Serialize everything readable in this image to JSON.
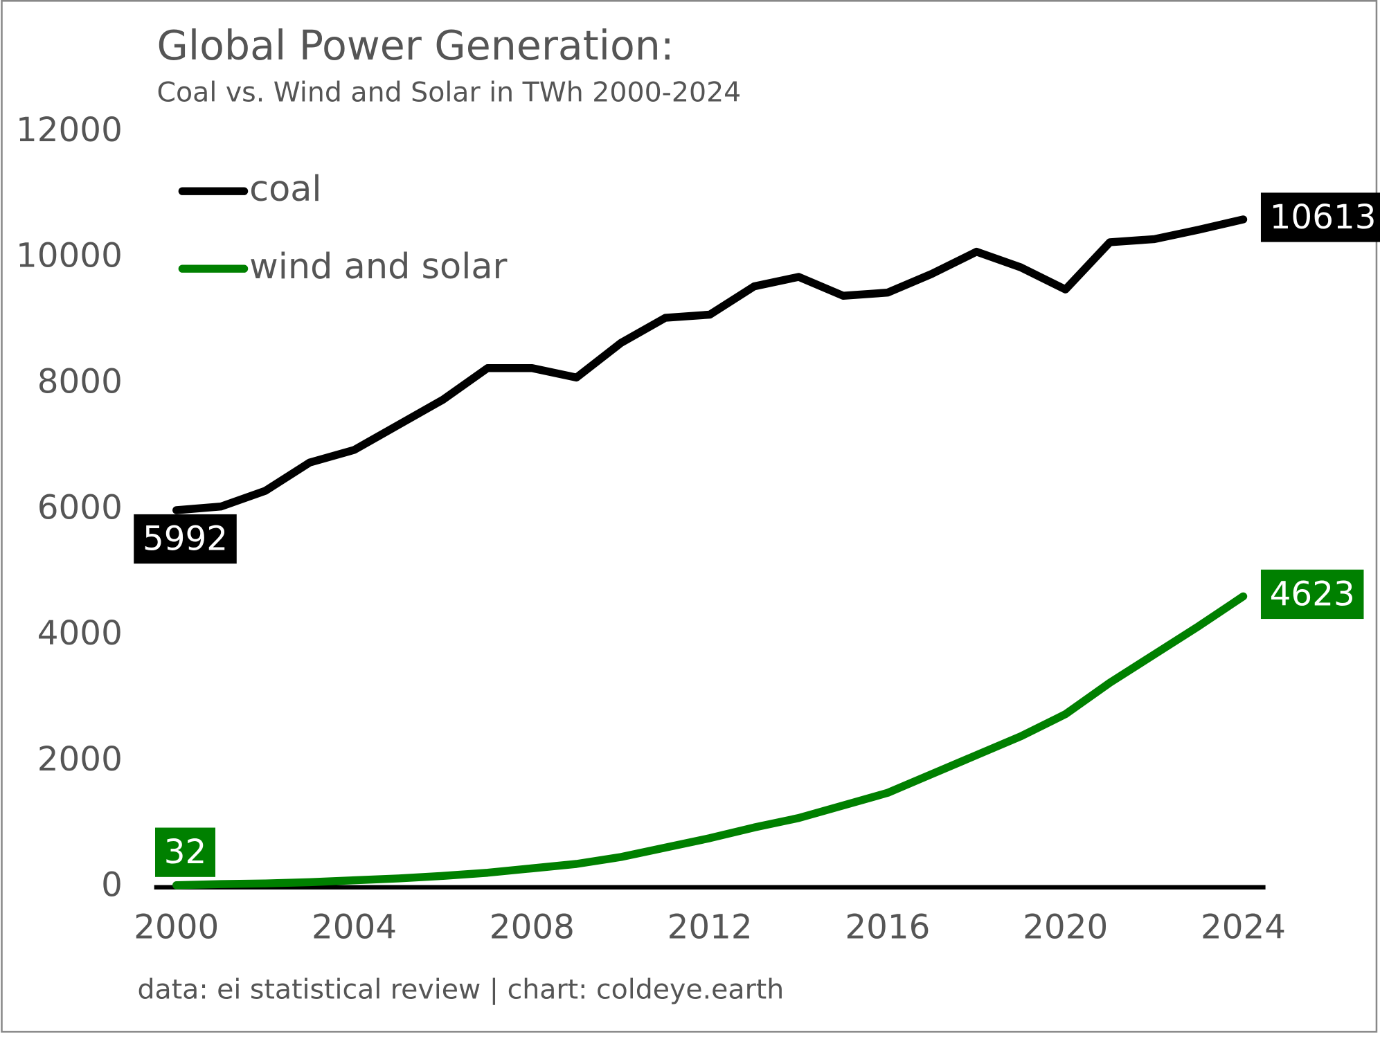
{
  "chart_data": {
    "type": "line",
    "title": "Global Power Generation:",
    "subtitle": "Coal vs. Wind and Solar in TWh 2000-2024",
    "source": "data: ei statistical review | chart: coldeye.earth",
    "x": [
      2000,
      2001,
      2002,
      2003,
      2004,
      2005,
      2006,
      2007,
      2008,
      2009,
      2010,
      2011,
      2012,
      2013,
      2014,
      2015,
      2016,
      2017,
      2018,
      2019,
      2020,
      2021,
      2022,
      2023,
      2024
    ],
    "series": [
      {
        "name": "coal",
        "color": "#000000",
        "values": [
          5992,
          6050,
          6300,
          6750,
          6950,
          7350,
          7750,
          8250,
          8250,
          8100,
          8650,
          9050,
          9100,
          9550,
          9700,
          9400,
          9450,
          9750,
          10100,
          9850,
          9500,
          10250,
          10300,
          10450,
          10613
        ]
      },
      {
        "name": "wind and solar",
        "color": "#008000",
        "values": [
          32,
          50,
          60,
          80,
          110,
          140,
          180,
          230,
          300,
          370,
          480,
          630,
          780,
          950,
          1100,
          1300,
          1500,
          1800,
          2100,
          2400,
          2750,
          3250,
          3700,
          4150,
          4623
        ]
      }
    ],
    "xlim": [
      1999.5,
      2024.5
    ],
    "xticks": [
      2000,
      2004,
      2008,
      2012,
      2016,
      2020,
      2024
    ],
    "ylim": [
      0,
      12000
    ],
    "yticks": [
      0,
      2000,
      4000,
      6000,
      8000,
      10000,
      12000
    ],
    "grid": false,
    "legend": "upper left"
  }
}
